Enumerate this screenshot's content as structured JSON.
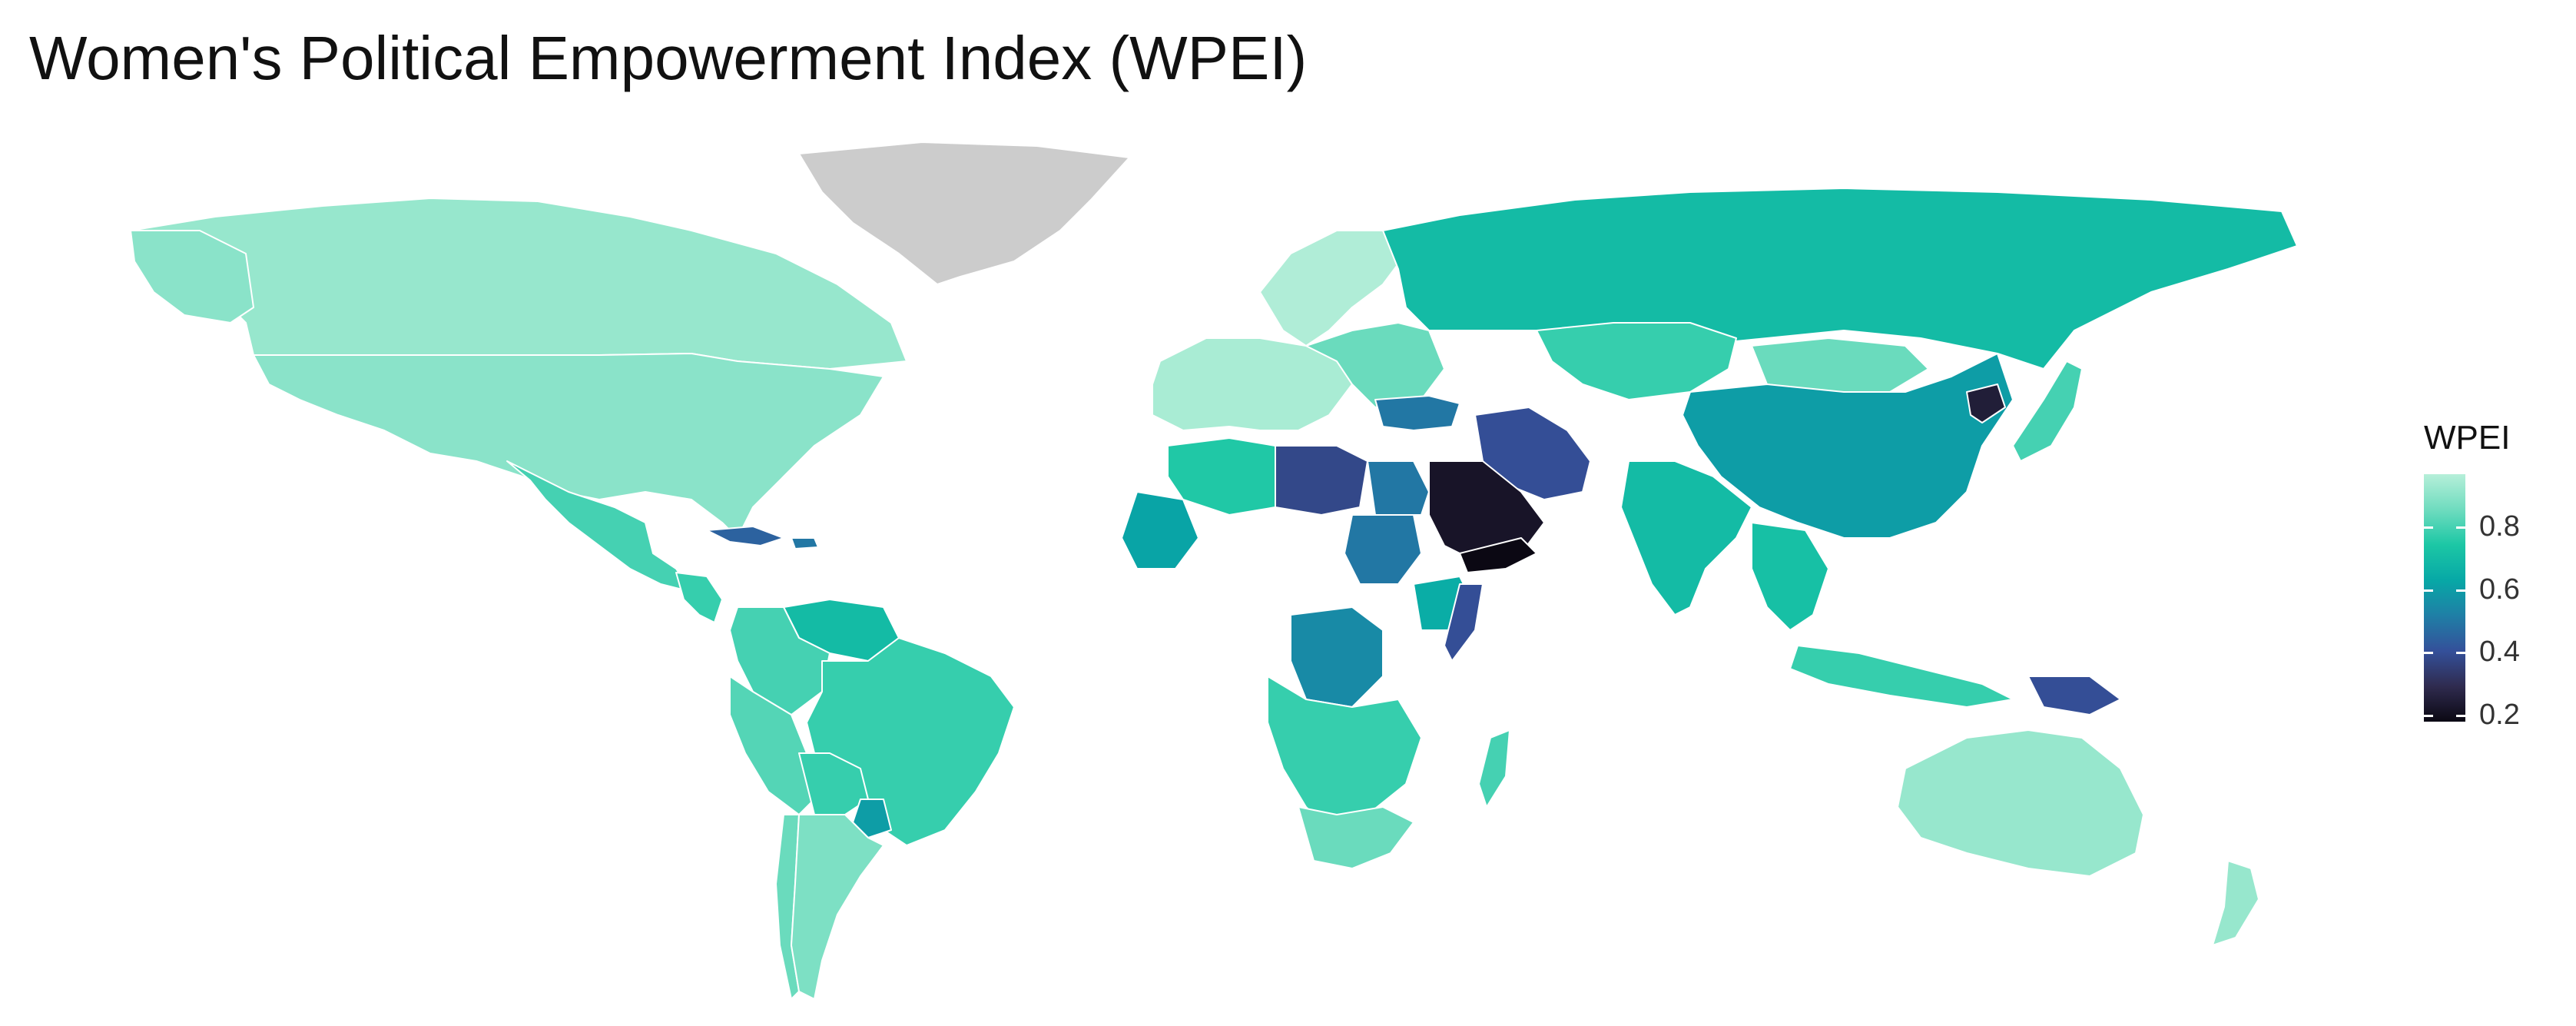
{
  "title": "Women's Political Empowerment Index (WPEI)",
  "legend": {
    "title": "WPEI",
    "ticks": [
      "0.8",
      "0.6",
      "0.4",
      "0.2"
    ],
    "tick_values": [
      0.8,
      0.6,
      0.4,
      0.2
    ],
    "range": [
      0.18,
      0.97
    ],
    "colors": [
      "#0b0813",
      "#2f2b4f",
      "#34509a",
      "#1f7fa6",
      "#07a8a6",
      "#1cc7a5",
      "#6fdcbf",
      "#b6efd9"
    ]
  },
  "no_data_color": "#cccccc",
  "chart_data": {
    "type": "choropleth",
    "title": "Women's Political Empowerment Index (WPEI)",
    "variable": "WPEI",
    "legend_position": "right",
    "regions": [
      {
        "name": "Canada",
        "value": 0.92
      },
      {
        "name": "United States",
        "value": 0.9
      },
      {
        "name": "Alaska",
        "value": 0.9
      },
      {
        "name": "Greenland",
        "value": null
      },
      {
        "name": "Mexico",
        "value": 0.8
      },
      {
        "name": "Central America",
        "value": 0.78
      },
      {
        "name": "Cuba",
        "value": 0.45
      },
      {
        "name": "Haiti",
        "value": 0.5
      },
      {
        "name": "Venezuela",
        "value": 0.7
      },
      {
        "name": "Colombia",
        "value": 0.8
      },
      {
        "name": "Peru",
        "value": 0.82
      },
      {
        "name": "Brazil",
        "value": 0.78
      },
      {
        "name": "Bolivia",
        "value": 0.78
      },
      {
        "name": "Paraguay",
        "value": 0.6
      },
      {
        "name": "Chile",
        "value": 0.85
      },
      {
        "name": "Argentina",
        "value": 0.88
      },
      {
        "name": "Western Europe",
        "value": 0.95
      },
      {
        "name": "Scandinavia",
        "value": 0.96
      },
      {
        "name": "Eastern Europe",
        "value": 0.85
      },
      {
        "name": "Russia",
        "value": 0.7
      },
      {
        "name": "Kazakhstan",
        "value": 0.78
      },
      {
        "name": "Mongolia",
        "value": 0.85
      },
      {
        "name": "China",
        "value": 0.6
      },
      {
        "name": "North Korea",
        "value": 0.25
      },
      {
        "name": "Japan",
        "value": 0.8
      },
      {
        "name": "India",
        "value": 0.7
      },
      {
        "name": "Iran",
        "value": 0.4
      },
      {
        "name": "Turkey",
        "value": 0.5
      },
      {
        "name": "Saudi Arabia",
        "value": 0.22
      },
      {
        "name": "Yemen",
        "value": 0.18
      },
      {
        "name": "Libya",
        "value": 0.38
      },
      {
        "name": "Egypt",
        "value": 0.5
      },
      {
        "name": "Algeria",
        "value": 0.75
      },
      {
        "name": "Mali",
        "value": 0.62
      },
      {
        "name": "Sudan",
        "value": 0.5
      },
      {
        "name": "Ethiopia",
        "value": 0.65
      },
      {
        "name": "Somalia",
        "value": 0.4
      },
      {
        "name": "DR Congo",
        "value": 0.55
      },
      {
        "name": "Southern Africa",
        "value": 0.78
      },
      {
        "name": "South Africa",
        "value": 0.85
      },
      {
        "name": "Madagascar",
        "value": 0.8
      },
      {
        "name": "Southeast Asia",
        "value": 0.72
      },
      {
        "name": "Indonesia",
        "value": 0.78
      },
      {
        "name": "Papua New Guinea",
        "value": 0.4
      },
      {
        "name": "Australia",
        "value": 0.92
      },
      {
        "name": "New Zealand",
        "value": 0.92
      }
    ]
  }
}
